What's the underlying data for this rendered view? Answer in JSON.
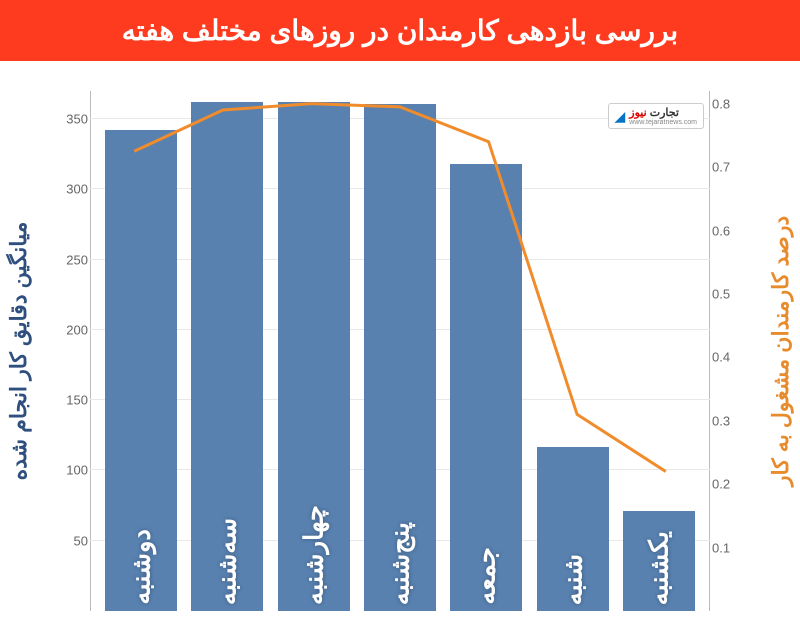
{
  "title": "بررسی بازدهی کارمندان در روزهای مختلف هفته",
  "chart": {
    "type": "bar+line",
    "background_color": "#ffffff",
    "header_color": "#ff3b1f",
    "grid_color": "#e8e8e8",
    "categories": [
      "دوشنبه",
      "سه‌شنبه",
      "چهارشنبه",
      "پنج‌شنبه",
      "جمعه",
      "شنبه",
      "یکشنبه"
    ],
    "bars": {
      "values": [
        342,
        362,
        362,
        361,
        318,
        117,
        71
      ],
      "color": "#5881b0",
      "bar_width": 0.72,
      "axis": "left",
      "label": "میانگین دقایق کار انجام شده",
      "label_color": "#2f4f7f",
      "ylim": [
        0,
        370
      ],
      "yticks": [
        50,
        100,
        150,
        200,
        250,
        300,
        350
      ]
    },
    "line": {
      "values": [
        0.725,
        0.79,
        0.8,
        0.795,
        0.74,
        0.31,
        0.22
      ],
      "color": "#f08c2c",
      "width": 3,
      "axis": "right",
      "label": "درصد کارمندان مشغول به کار",
      "label_color": "#e78b2c",
      "ylim": [
        0,
        0.82
      ],
      "yticks": [
        0.1,
        0.2,
        0.3,
        0.4,
        0.5,
        0.6,
        0.7,
        0.8
      ]
    },
    "label_fontsize": 22,
    "tick_fontsize": 13,
    "bar_text_fontsize": 26
  },
  "logo": {
    "brand": "تجارت",
    "suffix": "نیوز",
    "url": "www.tejaratnews.com"
  }
}
